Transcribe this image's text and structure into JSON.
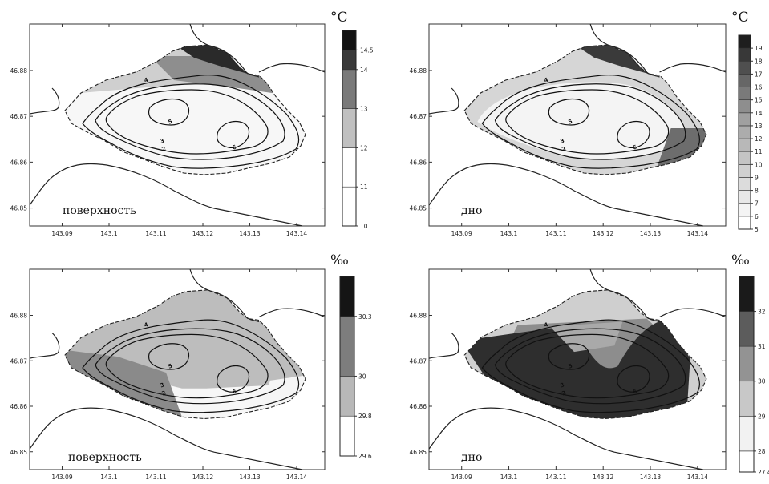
{
  "chart_data": [
    {
      "type": "heatmap",
      "panel": "top-left",
      "label": "поверхность",
      "unit": "°C",
      "x_ticks": [
        "143.09",
        "143.1",
        "143.11",
        "143.12",
        "143.13",
        "143.14"
      ],
      "y_ticks": [
        "46.88",
        "46.87",
        "46.86",
        "46.85"
      ],
      "xlim": [
        143.085,
        143.148
      ],
      "ylim": [
        46.845,
        46.889
      ],
      "colorbar_ticks": [
        "10",
        "11",
        "12",
        "13",
        "14",
        "14.5"
      ],
      "colorbar_levels": [
        10,
        11,
        12,
        13,
        14,
        14.5,
        15
      ],
      "isobath_labels": [
        "2",
        "3",
        "4",
        "5",
        "6"
      ],
      "fill_zones": [
        {
          "zone": "north-east shore",
          "level": 14.5
        },
        {
          "zone": "north band",
          "level": 13
        },
        {
          "zone": "west and north",
          "level": 12.5
        },
        {
          "zone": "central and south",
          "level": 11.5
        }
      ]
    },
    {
      "type": "heatmap",
      "panel": "top-right",
      "label": "дно",
      "unit": "°C",
      "x_ticks": [
        "143.09",
        "143.1",
        "143.11",
        "143.12",
        "143.13",
        "143.14"
      ],
      "y_ticks": [
        "46.88",
        "46.87",
        "46.86",
        "46.85"
      ],
      "xlim": [
        143.085,
        143.148
      ],
      "ylim": [
        46.845,
        46.889
      ],
      "colorbar_ticks": [
        "5",
        "6",
        "7",
        "8",
        "9",
        "10",
        "11",
        "12",
        "13",
        "14",
        "15",
        "16",
        "17",
        "18",
        "19"
      ],
      "colorbar_levels": [
        5,
        6,
        7,
        8,
        9,
        10,
        11,
        12,
        13,
        14,
        15,
        16,
        17,
        18,
        19,
        20
      ],
      "isobath_labels": [
        "2",
        "3",
        "4",
        "5",
        "6"
      ],
      "fill_zones": [
        {
          "zone": "north-east shore",
          "level": 17
        },
        {
          "zone": "south-east shore",
          "level": 15
        },
        {
          "zone": "rim",
          "level": 11
        },
        {
          "zone": "central",
          "level": 7
        }
      ]
    },
    {
      "type": "heatmap",
      "panel": "bottom-left",
      "label": "поверхность",
      "unit": "‰",
      "x_ticks": [
        "143.09",
        "143.1",
        "143.11",
        "143.12",
        "143.13",
        "143.14"
      ],
      "y_ticks": [
        "46.88",
        "46.87",
        "46.86",
        "46.85"
      ],
      "xlim": [
        143.085,
        143.148
      ],
      "ylim": [
        46.845,
        46.889
      ],
      "colorbar_ticks": [
        "29.6",
        "29.8",
        "30",
        "30.3"
      ],
      "colorbar_levels": [
        29.6,
        29.8,
        30,
        30.3,
        30.5
      ],
      "isobath_labels": [
        "2",
        "3",
        "4",
        "5",
        "6"
      ],
      "fill_zones": [
        {
          "zone": "south-west",
          "level": 30.1
        },
        {
          "zone": "central and north",
          "level": 29.9
        },
        {
          "zone": "east edge",
          "level": 29.7
        }
      ]
    },
    {
      "type": "heatmap",
      "panel": "bottom-right",
      "label": "дно",
      "unit": "‰",
      "x_ticks": [
        "143.09",
        "143.1",
        "143.11",
        "143.12",
        "143.13",
        "143.14"
      ],
      "y_ticks": [
        "46.88",
        "46.87",
        "46.86",
        "46.85"
      ],
      "xlim": [
        143.085,
        143.148
      ],
      "ylim": [
        46.845,
        46.889
      ],
      "colorbar_ticks": [
        "27.4",
        "28",
        "29",
        "30",
        "31",
        "32"
      ],
      "colorbar_levels": [
        27.4,
        28,
        29,
        30,
        31,
        32,
        33
      ],
      "isobath_labels": [
        "2",
        "3",
        "4",
        "5",
        "6"
      ],
      "fill_zones": [
        {
          "zone": "west and central-south",
          "level": 32
        },
        {
          "zone": "north-central",
          "level": 30.5
        },
        {
          "zone": "rim",
          "level": 29.5
        }
      ]
    }
  ]
}
